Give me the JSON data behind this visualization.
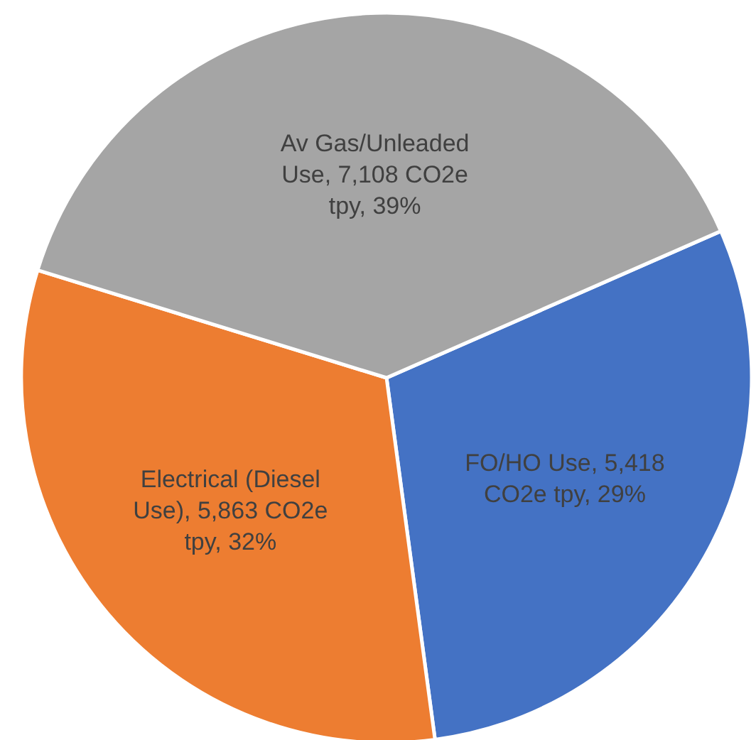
{
  "chart_data": {
    "type": "pie",
    "categories": [
      "FO/HO Use",
      "Electrical (Diesel Use)",
      "Av Gas/Unleaded Use"
    ],
    "values": [
      5418,
      5863,
      7108
    ],
    "colors": [
      "#4472c4",
      "#ed7d31",
      "#a5a5a5"
    ],
    "value_labels": [
      "5,418 CO2e tpy, 29%",
      "5,863 CO2e tpy, 32%",
      "7,108 CO2e tpy, 39%"
    ],
    "legend": false
  }
}
